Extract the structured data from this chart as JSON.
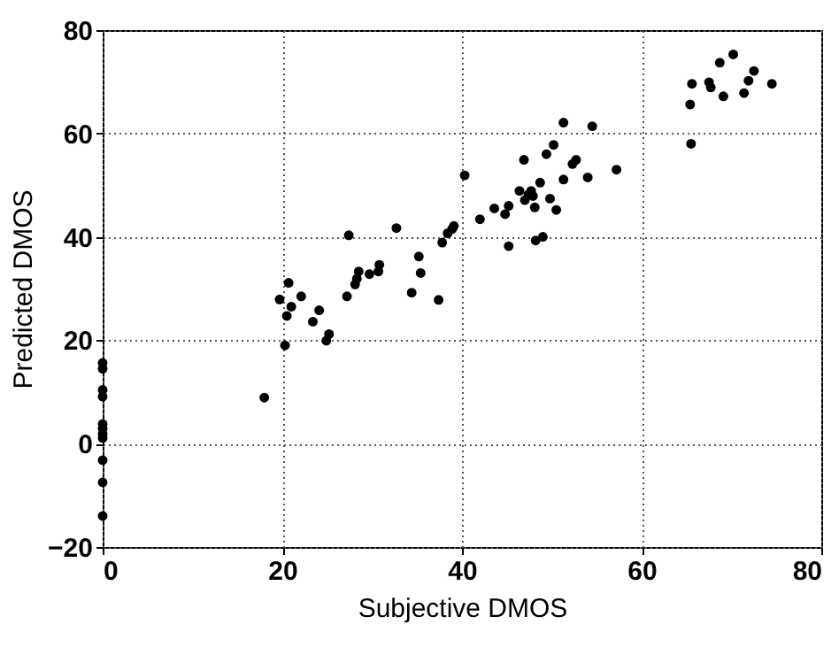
{
  "chart_data": {
    "type": "scatter",
    "xlabel": "Subjective DMOS",
    "ylabel": "Predicted DMOS",
    "xlim": [
      0,
      80
    ],
    "ylim": [
      -20,
      80
    ],
    "xticks": [
      0,
      20,
      40,
      60,
      80
    ],
    "yticks": [
      -20,
      0,
      20,
      40,
      60,
      80
    ],
    "grid": true,
    "marker": "circle",
    "series": [
      {
        "color": "#000000",
        "x": [
          0,
          0,
          0,
          0,
          0,
          0,
          0,
          0,
          0,
          0,
          0,
          18.0,
          19.7,
          20.7,
          20.3,
          20.5,
          21.0,
          22.1,
          23.4,
          24.1,
          24.9,
          25.2,
          27.4,
          27.2,
          28.1,
          28.3,
          28.5,
          29.7,
          30.7,
          30.8,
          32.7,
          34.4,
          35.2,
          35.4,
          37.4,
          37.8,
          38.4,
          38.9,
          39.1,
          40.3,
          42.0,
          43.6,
          44.8,
          45.2,
          45.2,
          46.9,
          46.4,
          47.0,
          47.4,
          47.7,
          47.9,
          48.1,
          48.7,
          48.2,
          49.0,
          49.4,
          49.8,
          50.2,
          50.5,
          51.3,
          51.3,
          52.3,
          52.7,
          54.0,
          54.5,
          57.2,
          65.5,
          65.4,
          65.6,
          67.5,
          67.7,
          68.7,
          69.1,
          70.2,
          71.4,
          71.9,
          72.5,
          74.5
        ],
        "values": [
          15.6,
          14.5,
          10.4,
          9.1,
          3.8,
          2.9,
          1.9,
          1.1,
          -3.2,
          -7.5,
          -14,
          8.9,
          27.9,
          31.1,
          19.0,
          24.7,
          26.5,
          28.5,
          23.6,
          25.8,
          19.9,
          21.2,
          40.3,
          28.5,
          30.8,
          31.9,
          33.3,
          32.8,
          33.3,
          34.6,
          41.7,
          29.2,
          36.2,
          33.0,
          27.8,
          38.9,
          40.7,
          41.5,
          42.1,
          51.9,
          43.4,
          45.5,
          44.4,
          46.0,
          38.2,
          54.9,
          48.9,
          47.1,
          48.2,
          48.9,
          47.9,
          45.7,
          50.5,
          39.3,
          40.0,
          56.0,
          47.4,
          57.8,
          45.2,
          62.1,
          51.1,
          54.1,
          54.9,
          51.5,
          61.4,
          53.0,
          58.0,
          65.6,
          69.6,
          69.9,
          68.9,
          73.7,
          67.2,
          75.3,
          67.8,
          70.2,
          72.1,
          69.6
        ]
      }
    ]
  }
}
